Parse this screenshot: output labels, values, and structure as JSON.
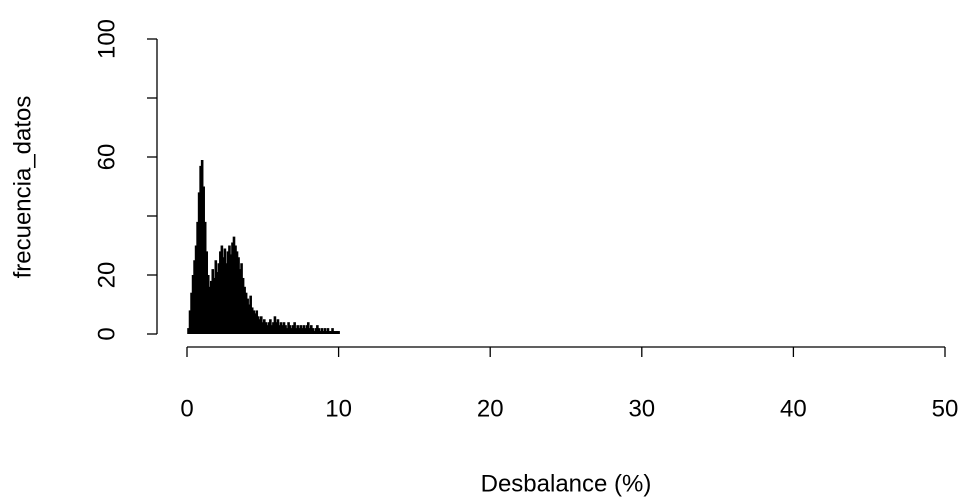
{
  "chart_data": {
    "type": "spike",
    "xlabel": "Desbalance (%)",
    "ylabel": "frecuencia_datos",
    "xlim": [
      0,
      50
    ],
    "xticks": [
      0,
      10,
      20,
      30,
      40,
      50
    ],
    "ylim": [
      0,
      100
    ],
    "yticks": [
      0,
      20,
      60,
      100
    ],
    "yticks_unlabeled": [
      40,
      80
    ],
    "color": "#000000",
    "x": [
      0.1,
      0.2,
      0.3,
      0.4,
      0.5,
      0.6,
      0.7,
      0.8,
      0.9,
      1.0,
      1.1,
      1.2,
      1.3,
      1.4,
      1.5,
      1.6,
      1.7,
      1.8,
      1.9,
      2.0,
      2.1,
      2.2,
      2.3,
      2.4,
      2.5,
      2.6,
      2.7,
      2.8,
      2.9,
      3.0,
      3.1,
      3.2,
      3.3,
      3.4,
      3.5,
      3.6,
      3.7,
      3.8,
      3.9,
      4.0,
      4.1,
      4.2,
      4.3,
      4.4,
      4.5,
      4.6,
      4.7,
      4.8,
      4.9,
      5.0,
      5.1,
      5.2,
      5.3,
      5.4,
      5.5,
      5.6,
      5.7,
      5.8,
      5.9,
      6.0,
      6.1,
      6.2,
      6.3,
      6.4,
      6.5,
      6.6,
      6.7,
      6.8,
      6.9,
      7.0,
      7.1,
      7.2,
      7.3,
      7.4,
      7.5,
      7.6,
      7.7,
      7.8,
      7.9,
      8.0,
      8.1,
      8.2,
      8.3,
      8.4,
      8.5,
      8.6,
      8.7,
      8.8,
      8.9,
      9.0,
      9.1,
      9.2,
      9.3,
      9.4,
      9.5,
      9.6,
      9.7,
      9.8,
      9.9,
      10.0
    ],
    "values": [
      2,
      8,
      14,
      20,
      25,
      30,
      38,
      48,
      57,
      59,
      50,
      38,
      28,
      20,
      16,
      18,
      22,
      19,
      25,
      21,
      24,
      28,
      30,
      26,
      29,
      24,
      28,
      30,
      27,
      31,
      33,
      30,
      28,
      26,
      22,
      24,
      19,
      16,
      14,
      12,
      10,
      13,
      9,
      8,
      7,
      8,
      6,
      5,
      6,
      4,
      5,
      4,
      3,
      4,
      5,
      3,
      4,
      6,
      4,
      5,
      3,
      4,
      3,
      4,
      3,
      2,
      4,
      3,
      2,
      3,
      4,
      2,
      3,
      2,
      3,
      2,
      3,
      2,
      3,
      4,
      2,
      3,
      2,
      1,
      2,
      3,
      2,
      1,
      2,
      1,
      2,
      1,
      2,
      1,
      1,
      2,
      1,
      1,
      1,
      1
    ]
  }
}
